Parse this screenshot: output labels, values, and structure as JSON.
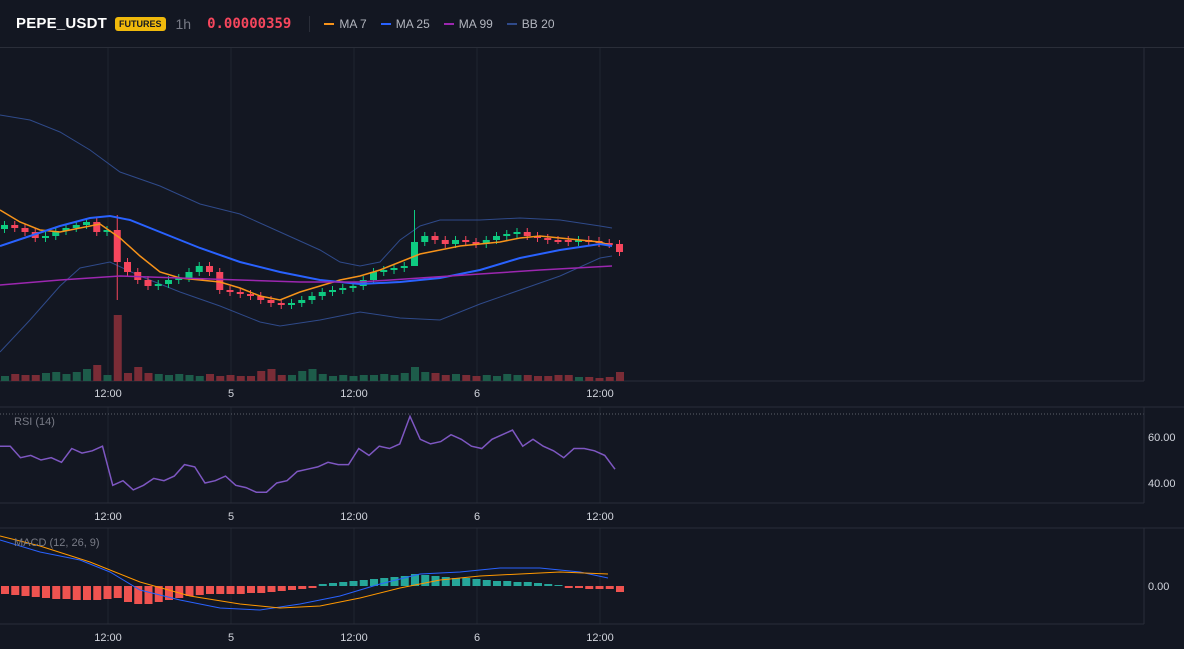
{
  "header": {
    "symbol": "PEPE_USDT",
    "badge": "FUTURES",
    "interval": "1h",
    "price": "0.00000359",
    "legend": [
      {
        "label": "MA 7",
        "color": "#f7931a"
      },
      {
        "label": "MA 25",
        "color": "#2962ff"
      },
      {
        "label": "MA 99",
        "color": "#9c27b0"
      },
      {
        "label": "BB 20",
        "color": "#2f4a8a"
      }
    ]
  },
  "colors": {
    "up": "#0ecb81",
    "down": "#f6465d",
    "grid": "#1f2430",
    "rsi": "#7e57c2",
    "macd": "#2962ff",
    "signal": "#ff9800",
    "hist_up": "#26a69a",
    "hist_down": "#ef5350"
  },
  "time_axis": [
    "12:00",
    "5",
    "12:00",
    "6",
    "12:00"
  ],
  "rsi": {
    "title": "RSI (14)",
    "ticks": [
      "60.00",
      "40.00"
    ],
    "values": [
      56,
      56,
      51,
      52,
      50,
      51,
      49,
      55,
      53,
      54,
      56,
      39,
      41,
      37,
      39,
      42,
      41,
      43,
      48,
      47,
      40,
      41,
      43,
      39,
      38,
      36,
      36,
      40,
      41,
      45,
      46,
      47,
      49,
      48,
      48,
      55,
      52,
      56,
      55,
      57,
      69,
      59,
      57,
      58,
      61,
      59,
      56,
      55,
      59,
      61,
      63,
      56,
      59,
      56,
      54,
      51,
      55,
      55,
      54,
      52,
      46
    ]
  },
  "macd": {
    "title": "MACD (12, 26, 9)",
    "ticks": [
      "0.00"
    ]
  }
}
